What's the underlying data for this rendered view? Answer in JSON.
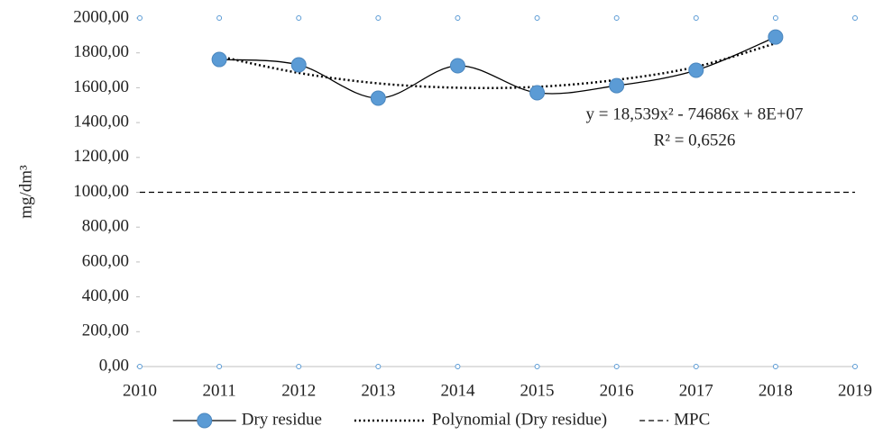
{
  "chart_data": {
    "type": "line",
    "y_label": "mg/dm³",
    "xlim": [
      2010,
      2019
    ],
    "xticks": [
      2010,
      2011,
      2012,
      2013,
      2014,
      2015,
      2016,
      2017,
      2018,
      2019
    ],
    "ylim": [
      0,
      2000
    ],
    "yticks": [
      {
        "value": 0,
        "label": "0,00"
      },
      {
        "value": 200,
        "label": "200,00"
      },
      {
        "value": 400,
        "label": "400,00"
      },
      {
        "value": 600,
        "label": "600,00"
      },
      {
        "value": 800,
        "label": "800,00"
      },
      {
        "value": 1000,
        "label": "1000,00"
      },
      {
        "value": 1200,
        "label": "1200,00"
      },
      {
        "value": 1400,
        "label": "1400,00"
      },
      {
        "value": 1600,
        "label": "1600,00"
      },
      {
        "value": 1800,
        "label": "1800,00"
      },
      {
        "value": 2000,
        "label": "2000,00"
      }
    ],
    "series": [
      {
        "name": "Dry residue",
        "color": "#5b9bd5",
        "line_color": "#000000",
        "style": "solid",
        "smooth": true,
        "markers": true,
        "x": [
          2011,
          2012,
          2013,
          2014,
          2015,
          2016,
          2017,
          2018
        ],
        "values": [
          1762,
          1731,
          1540,
          1726,
          1571,
          1612,
          1700,
          1891
        ]
      },
      {
        "name": "Polynomial (Dry residue)",
        "color": "#000000",
        "style": "dotted",
        "smooth": true,
        "markers": false,
        "x": [
          2011,
          2012,
          2013,
          2014,
          2015,
          2016,
          2017,
          2018
        ],
        "values": [
          1780,
          1685,
          1625,
          1600,
          1605,
          1645,
          1720,
          1855
        ]
      },
      {
        "name": "MPC",
        "color": "#000000",
        "style": "dashed",
        "smooth": false,
        "markers": false,
        "x": [
          2010,
          2019
        ],
        "values": [
          1000,
          1000
        ]
      }
    ],
    "annotations": [
      "y = 18,539x² - 74686x + 8E+07",
      "R² = 0,6526"
    ],
    "legend": "bottom"
  }
}
